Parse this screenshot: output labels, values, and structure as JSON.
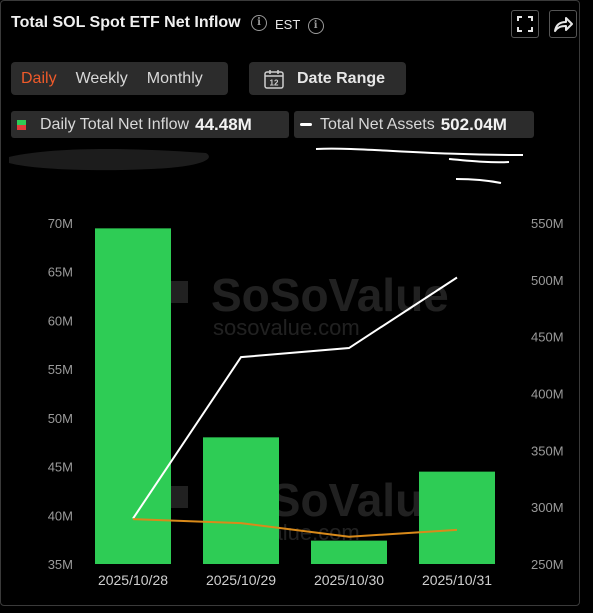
{
  "header": {
    "title": "Total SOL Spot ETF Net Inflow",
    "timezone": "EST"
  },
  "tabs": [
    {
      "label": "Daily",
      "active": true
    },
    {
      "label": "Weekly",
      "active": false
    },
    {
      "label": "Monthly",
      "active": false
    }
  ],
  "date_range": {
    "label": "Date Range",
    "calendar_day": "12"
  },
  "legend": {
    "inflow_label": "Daily Total Net Inflow",
    "inflow_value": "44.48M",
    "assets_label": "Total Net Assets",
    "assets_value": "502.04M"
  },
  "watermark": {
    "brand": "SoSoValue",
    "url": "sosovalue.com"
  },
  "colors": {
    "bar": "#2ecc55",
    "assets_line": "#ffffff",
    "orange_line": "#d98a1a",
    "accent": "#ef5a2a"
  },
  "chart_data": {
    "type": "bar",
    "categories": [
      "2025/10/28",
      "2025/10/29",
      "2025/10/30",
      "2025/10/31"
    ],
    "series": [
      {
        "name": "Daily Total Net Inflow",
        "type": "bar",
        "axis": "left",
        "values": [
          69.45,
          48.0,
          37.4,
          44.48
        ]
      },
      {
        "name": "Total Net Assets",
        "type": "line",
        "axis": "right",
        "values": [
          290,
          432,
          440,
          502.04
        ]
      },
      {
        "type": "line",
        "axis": "left",
        "values": [
          39.6,
          39.2,
          37.8,
          38.5
        ]
      }
    ],
    "y_left": {
      "ticks": [
        "35M",
        "40M",
        "45M",
        "50M",
        "55M",
        "60M",
        "65M",
        "70M"
      ],
      "range": [
        35,
        70
      ]
    },
    "y_right": {
      "ticks": [
        "250M",
        "300M",
        "350M",
        "400M",
        "450M",
        "500M",
        "550M"
      ],
      "range": [
        250,
        550
      ]
    },
    "grid": false
  }
}
